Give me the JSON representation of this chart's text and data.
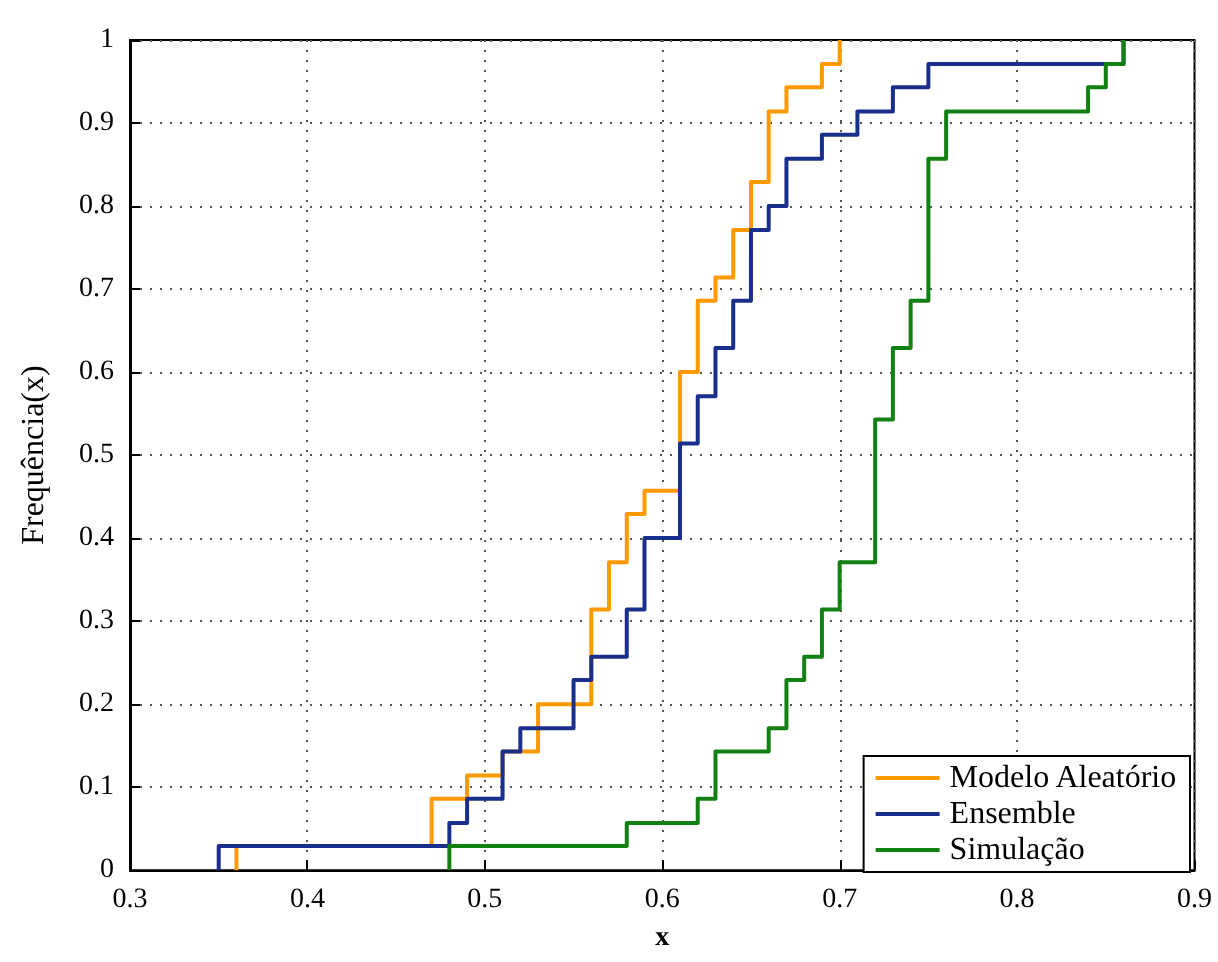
{
  "chart_data": {
    "type": "step",
    "xlabel": "x",
    "ylabel": "Frequência(x)",
    "xlim": [
      0.3,
      0.9
    ],
    "xticks": [
      0.3,
      0.4,
      0.5,
      0.6,
      0.7,
      0.8,
      0.9
    ],
    "ylim": [
      0,
      1
    ],
    "yticks": [
      0,
      0.1,
      0.2,
      0.3,
      0.4,
      0.5,
      0.6,
      0.7,
      0.8,
      0.9,
      1
    ],
    "grid": true,
    "legend": "bottom right",
    "marker": "none",
    "line_style": "solid",
    "series": [
      {
        "name": "Modelo Aleatório",
        "color": "#ff9900",
        "x": [
          0.36,
          0.36,
          0.47,
          0.49,
          0.51,
          0.53,
          0.56,
          0.57,
          0.58,
          0.59,
          0.61,
          0.62,
          0.63,
          0.64,
          0.65,
          0.66,
          0.67,
          0.69,
          0.7
        ],
        "values": [
          0,
          0.029,
          0.086,
          0.114,
          0.143,
          0.2,
          0.314,
          0.371,
          0.429,
          0.457,
          0.6,
          0.686,
          0.714,
          0.771,
          0.829,
          0.914,
          0.943,
          0.971,
          1
        ]
      },
      {
        "name": "Ensemble",
        "color": "#1a2e8c",
        "x": [
          0.35,
          0.35,
          0.48,
          0.49,
          0.51,
          0.52,
          0.55,
          0.56,
          0.58,
          0.59,
          0.61,
          0.62,
          0.63,
          0.64,
          0.65,
          0.66,
          0.67,
          0.69,
          0.71,
          0.73,
          0.75,
          0.86
        ],
        "values": [
          0,
          0.029,
          0.057,
          0.086,
          0.143,
          0.171,
          0.229,
          0.257,
          0.314,
          0.4,
          0.514,
          0.571,
          0.629,
          0.686,
          0.771,
          0.8,
          0.857,
          0.886,
          0.914,
          0.943,
          0.971,
          1
        ]
      },
      {
        "name": "Simulação",
        "color": "#128012",
        "x": [
          0.48,
          0.48,
          0.58,
          0.62,
          0.63,
          0.66,
          0.67,
          0.68,
          0.69,
          0.7,
          0.72,
          0.73,
          0.74,
          0.75,
          0.76,
          0.84,
          0.85,
          0.86
        ],
        "values": [
          0,
          0.029,
          0.057,
          0.086,
          0.143,
          0.171,
          0.229,
          0.257,
          0.314,
          0.371,
          0.543,
          0.629,
          0.686,
          0.857,
          0.914,
          0.943,
          0.971,
          1
        ]
      }
    ]
  }
}
